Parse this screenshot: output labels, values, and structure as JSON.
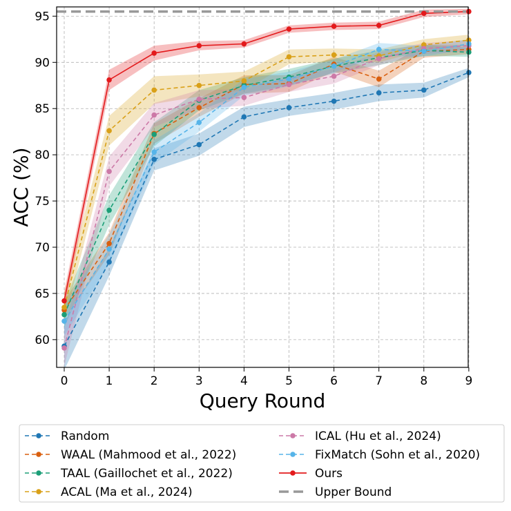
{
  "chart_data": {
    "type": "line",
    "title": "",
    "xlabel": "Query Round",
    "ylabel": "ACC (%)",
    "x": [
      0,
      1,
      2,
      3,
      4,
      5,
      6,
      7,
      8,
      9
    ],
    "xlim": [
      -0.2,
      9
    ],
    "ylim": [
      57,
      96
    ],
    "xticks": [
      "0",
      "1",
      "2",
      "3",
      "4",
      "5",
      "6",
      "7",
      "8",
      "9"
    ],
    "yticks": [
      "60",
      "65",
      "70",
      "75",
      "80",
      "85",
      "90",
      "95"
    ],
    "ytick_values": [
      60,
      65,
      70,
      75,
      80,
      85,
      90,
      95
    ],
    "grid": true,
    "legend_position": "bottom",
    "series": [
      {
        "name": "Random",
        "color": "#1f77b4",
        "style": "dashed",
        "marker": true,
        "values": [
          59.3,
          68.4,
          79.5,
          81.1,
          84.1,
          85.1,
          85.8,
          86.7,
          87.0,
          88.9
        ],
        "band": [
          2.6,
          1.5,
          1.2,
          1.2,
          1.1,
          0.9,
          0.9,
          0.9,
          0.8,
          0.5
        ]
      },
      {
        "name": "WAAL (Mahmood et al., 2022)",
        "color": "#d95f0e",
        "style": "dashed",
        "marker": true,
        "values": [
          63.2,
          70.4,
          82.3,
          85.1,
          87.6,
          87.7,
          89.8,
          88.2,
          91.2,
          91.4
        ],
        "band": [
          1.0,
          1.2,
          1.1,
          1.0,
          1.0,
          0.9,
          0.8,
          0.9,
          0.7,
          0.5
        ]
      },
      {
        "name": "TAAL (Gaillochet et al., 2022)",
        "color": "#1b9e77",
        "style": "dashed",
        "marker": true,
        "values": [
          62.7,
          74.0,
          82.2,
          85.9,
          87.5,
          88.4,
          89.6,
          90.5,
          91.3,
          91.1
        ],
        "band": [
          1.4,
          1.6,
          1.3,
          1.1,
          0.9,
          0.9,
          0.8,
          0.8,
          0.6,
          0.5
        ]
      },
      {
        "name": "ACAL (Ma et al., 2024)",
        "color": "#d9a018",
        "style": "dashed",
        "marker": true,
        "values": [
          63.5,
          82.6,
          87.0,
          87.5,
          88.0,
          90.6,
          90.8,
          90.7,
          91.9,
          92.4
        ],
        "band": [
          1.5,
          1.6,
          1.5,
          1.2,
          1.0,
          0.8,
          0.7,
          0.7,
          0.6,
          0.6
        ]
      },
      {
        "name": "ICAL (Hu et al., 2024)",
        "color": "#cc79a7",
        "style": "dashed",
        "marker": true,
        "values": [
          59.1,
          78.2,
          84.3,
          86.0,
          86.2,
          87.6,
          88.5,
          90.4,
          91.5,
          91.8
        ],
        "band": [
          2.0,
          1.6,
          1.3,
          1.0,
          0.9,
          0.8,
          0.8,
          0.7,
          0.6,
          0.6
        ]
      },
      {
        "name": "FixMatch (Sohn et al., 2020)",
        "color": "#56b4e9",
        "style": "dashed",
        "marker": true,
        "values": [
          62.0,
          69.8,
          80.3,
          83.5,
          87.3,
          88.2,
          89.6,
          91.4,
          91.2,
          92.0
        ],
        "band": [
          1.6,
          1.6,
          1.3,
          1.0,
          0.9,
          0.8,
          0.7,
          0.7,
          0.6,
          0.5
        ]
      },
      {
        "name": "Ours",
        "color": "#e31a1c",
        "style": "solid",
        "marker": true,
        "values": [
          64.2,
          88.1,
          91.0,
          91.8,
          92.0,
          93.6,
          93.9,
          94.0,
          95.3,
          95.5
        ],
        "band": [
          1.0,
          1.1,
          0.8,
          0.5,
          0.4,
          0.4,
          0.4,
          0.4,
          0.4,
          0.3
        ]
      },
      {
        "name": "Upper Bound",
        "color": "#999999",
        "style": "dashed-thick",
        "marker": false,
        "constant": 95.5
      }
    ],
    "legend_columns": [
      [
        "Random",
        "WAAL (Mahmood et al., 2022)",
        "TAAL (Gaillochet et al., 2022)",
        "ACAL (Ma et al., 2024)"
      ],
      [
        "ICAL (Hu et al., 2024)",
        "FixMatch (Sohn et al., 2020)",
        "Ours",
        "Upper Bound"
      ]
    ]
  }
}
